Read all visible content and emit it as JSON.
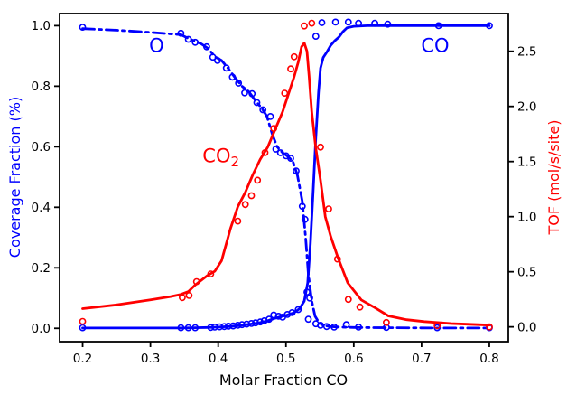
{
  "figure": {
    "background": "#ffffff",
    "frame_color": "#000000"
  },
  "chart_data": {
    "type": "line",
    "title": "",
    "xlabel": "Molar Fraction CO",
    "ylabel_left": "Coverage Fraction (%)",
    "ylabel_right": "TOF (mol/s/site)",
    "legend": "none",
    "grid": false,
    "xlim": [
      0.166,
      0.828
    ],
    "ylim_left": [
      -0.044,
      1.04
    ],
    "ylim_right": [
      -0.134,
      2.842
    ],
    "x_ticks": [
      "0.2",
      "0.3",
      "0.4",
      "0.5",
      "0.6",
      "0.7",
      "0.8"
    ],
    "y_left_ticks": [
      "0.0",
      "0.2",
      "0.4",
      "0.6",
      "0.8",
      "1.0"
    ],
    "y_right_ticks": [
      "0.0",
      "0.5",
      "1.0",
      "1.5",
      "2.0",
      "2.5"
    ],
    "colors": {
      "coverage_axis": "#0000ff",
      "tof_axis": "#ff0000",
      "ticks": "#000000"
    },
    "annotations": [
      {
        "text": "O",
        "sub": "",
        "x": 0.309,
        "y": 0.935,
        "color": "#0000ff"
      },
      {
        "text": "CO",
        "sub": "",
        "x": 0.72,
        "y": 0.935,
        "color": "#0000ff"
      },
      {
        "text": "CO",
        "sub": "2",
        "x": 0.404,
        "y": 0.571,
        "color": "#ff0000"
      }
    ],
    "series": [
      {
        "name": "O coverage",
        "slug": "o-coverage",
        "axis": "left",
        "color": "#0000ff",
        "linestyle": "dashdot",
        "marker": "open-circle",
        "line": {
          "x": [
            0.2,
            0.25,
            0.3,
            0.345,
            0.356,
            0.366,
            0.375,
            0.385,
            0.395,
            0.405,
            0.415,
            0.425,
            0.435,
            0.445,
            0.455,
            0.465,
            0.472,
            0.48,
            0.487,
            0.495,
            0.503,
            0.51,
            0.517,
            0.524,
            0.529,
            0.533,
            0.538,
            0.543,
            0.549,
            0.555,
            0.565,
            0.58,
            0.6,
            0.65,
            0.725,
            0.8
          ],
          "y": [
            0.99,
            0.985,
            0.978,
            0.97,
            0.958,
            0.948,
            0.94,
            0.925,
            0.898,
            0.885,
            0.858,
            0.828,
            0.8,
            0.782,
            0.752,
            0.725,
            0.7,
            0.64,
            0.6,
            0.58,
            0.568,
            0.552,
            0.505,
            0.42,
            0.3,
            0.18,
            0.09,
            0.04,
            0.018,
            0.01,
            0.006,
            0.004,
            0.003,
            0.002,
            0.001,
            0.001
          ]
        },
        "markers": {
          "x": [
            0.2,
            0.345,
            0.356,
            0.366,
            0.383,
            0.392,
            0.399,
            0.412,
            0.421,
            0.43,
            0.439,
            0.45,
            0.457,
            0.466,
            0.477,
            0.485,
            0.492,
            0.5,
            0.507,
            0.515,
            0.524,
            0.528,
            0.531,
            0.535,
            0.544,
            0.551,
            0.56,
            0.571,
            0.589,
            0.607,
            0.648,
            0.723,
            0.8
          ],
          "y": [
            0.995,
            0.975,
            0.955,
            0.945,
            0.93,
            0.896,
            0.885,
            0.86,
            0.83,
            0.81,
            0.778,
            0.775,
            0.746,
            0.722,
            0.7,
            0.592,
            0.58,
            0.57,
            0.562,
            0.52,
            0.403,
            0.36,
            0.12,
            0.1,
            0.015,
            0.01,
            0.006,
            0.004,
            0.012,
            0.004,
            0.003,
            0.002,
            0.002
          ]
        }
      },
      {
        "name": "CO coverage",
        "slug": "co-coverage",
        "axis": "left",
        "color": "#0000ff",
        "linestyle": "solid",
        "marker": "open-circle",
        "line": {
          "x": [
            0.2,
            0.3,
            0.345,
            0.365,
            0.385,
            0.4,
            0.415,
            0.43,
            0.445,
            0.46,
            0.472,
            0.482,
            0.492,
            0.502,
            0.512,
            0.52,
            0.527,
            0.532,
            0.536,
            0.54,
            0.544,
            0.548,
            0.551,
            0.555,
            0.56,
            0.566,
            0.572,
            0.578,
            0.584,
            0.59,
            0.6,
            0.62,
            0.65,
            0.725,
            0.8
          ],
          "y": [
            0.001,
            0.001,
            0.001,
            0.002,
            0.003,
            0.004,
            0.006,
            0.009,
            0.013,
            0.018,
            0.024,
            0.032,
            0.038,
            0.044,
            0.052,
            0.065,
            0.09,
            0.15,
            0.28,
            0.45,
            0.63,
            0.78,
            0.86,
            0.895,
            0.912,
            0.935,
            0.95,
            0.962,
            0.98,
            0.993,
            0.998,
            1.0,
            1.0,
            1.0,
            1.0
          ]
        },
        "markers": {
          "x": [
            0.2,
            0.345,
            0.356,
            0.366,
            0.389,
            0.395,
            0.402,
            0.409,
            0.415,
            0.422,
            0.429,
            0.435,
            0.442,
            0.449,
            0.455,
            0.462,
            0.468,
            0.475,
            0.482,
            0.489,
            0.495,
            0.502,
            0.509,
            0.518,
            0.533,
            0.544,
            0.553,
            0.573,
            0.592,
            0.607,
            0.631,
            0.65,
            0.725,
            0.8
          ],
          "y": [
            0.002,
            0.002,
            0.002,
            0.002,
            0.003,
            0.004,
            0.005,
            0.006,
            0.007,
            0.008,
            0.01,
            0.012,
            0.014,
            0.016,
            0.018,
            0.021,
            0.025,
            0.03,
            0.044,
            0.04,
            0.037,
            0.046,
            0.052,
            0.062,
            0.03,
            0.965,
            1.01,
            1.012,
            1.012,
            1.008,
            1.008,
            1.005,
            1.0,
            1.0
          ]
        }
      },
      {
        "name": "CO2 TOF",
        "slug": "co2-tof",
        "axis": "right",
        "color": "#ff0000",
        "linestyle": "solid",
        "marker": "open-circle",
        "line": {
          "x": [
            0.2,
            0.25,
            0.3,
            0.33,
            0.345,
            0.356,
            0.366,
            0.384,
            0.395,
            0.405,
            0.418,
            0.429,
            0.44,
            0.451,
            0.462,
            0.473,
            0.484,
            0.495,
            0.504,
            0.512,
            0.518,
            0.523,
            0.527,
            0.531,
            0.534,
            0.538,
            0.544,
            0.551,
            0.558,
            0.566,
            0.576,
            0.591,
            0.611,
            0.631,
            0.651,
            0.678,
            0.704,
            0.744,
            0.8
          ],
          "y": [
            0.165,
            0.2,
            0.245,
            0.275,
            0.295,
            0.32,
            0.38,
            0.465,
            0.505,
            0.6,
            0.89,
            1.09,
            1.22,
            1.38,
            1.52,
            1.63,
            1.79,
            1.95,
            2.12,
            2.27,
            2.4,
            2.54,
            2.575,
            2.5,
            2.28,
            1.95,
            1.62,
            1.33,
            1.0,
            0.82,
            0.64,
            0.4,
            0.245,
            0.175,
            0.1,
            0.065,
            0.048,
            0.03,
            0.016
          ]
        },
        "markers": {
          "x": [
            0.2,
            0.347,
            0.357,
            0.368,
            0.389,
            0.429,
            0.44,
            0.449,
            0.458,
            0.469,
            0.482,
            0.498,
            0.507,
            0.512,
            0.527,
            0.538,
            0.551,
            0.563,
            0.576,
            0.592,
            0.609,
            0.648,
            0.723,
            0.8
          ],
          "y": [
            0.05,
            0.265,
            0.285,
            0.41,
            0.48,
            0.96,
            1.11,
            1.19,
            1.33,
            1.58,
            1.8,
            2.12,
            2.34,
            2.45,
            2.73,
            2.755,
            1.63,
            1.07,
            0.615,
            0.25,
            0.18,
            0.04,
            0.01,
            0.0
          ]
        }
      }
    ]
  }
}
